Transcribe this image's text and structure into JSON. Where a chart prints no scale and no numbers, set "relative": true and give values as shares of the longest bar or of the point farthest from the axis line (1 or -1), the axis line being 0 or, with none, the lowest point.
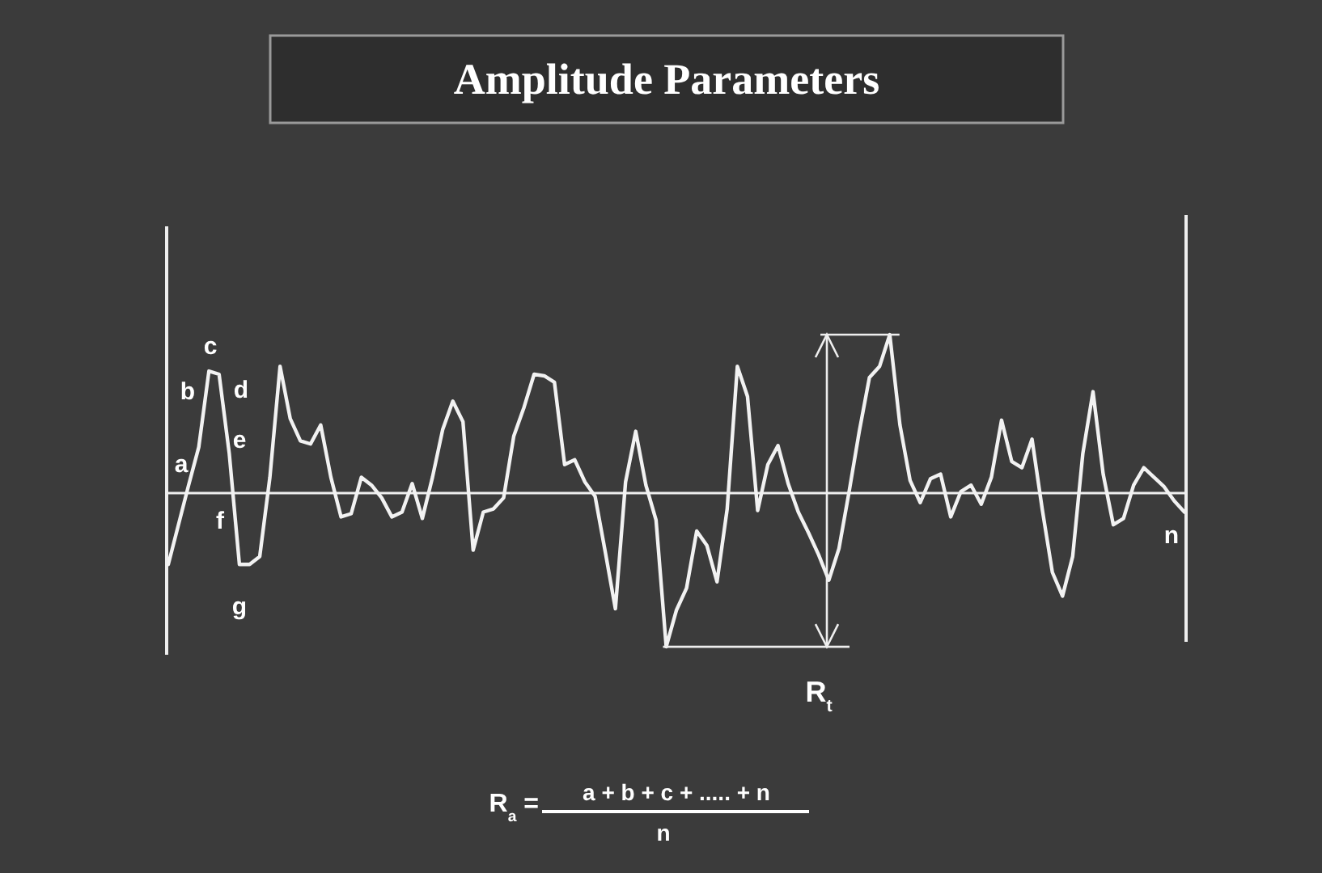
{
  "chart_data": {
    "type": "line",
    "title": "Amplitude Parameters",
    "relative": true,
    "marker": "none",
    "line_style": "solid",
    "color": "#f2f2f2",
    "categories": [
      null,
      null,
      null,
      null,
      null,
      null,
      null,
      null,
      null,
      null,
      null,
      null,
      null,
      null,
      null,
      null,
      null,
      null,
      null,
      null,
      null,
      null,
      null,
      null,
      null,
      null,
      null,
      null,
      null,
      null,
      null,
      null,
      null,
      null,
      null,
      null,
      null,
      null,
      null,
      null,
      null,
      null,
      null,
      null,
      null,
      null,
      null,
      null,
      null,
      null,
      null,
      null,
      null,
      null,
      null,
      null,
      null,
      null,
      null,
      null,
      null,
      null,
      null,
      null,
      null,
      null,
      null,
      null,
      null,
      null,
      null,
      null,
      null,
      null,
      null,
      null,
      null,
      null,
      null,
      null,
      null,
      null,
      null,
      null,
      null,
      null,
      null,
      null,
      null,
      null,
      null,
      null,
      null,
      null,
      null,
      null,
      null,
      null,
      null,
      null,
      null
    ],
    "values": [
      -0.45,
      -0.2,
      0.05,
      0.29,
      0.77,
      0.75,
      0.25,
      -0.45,
      -0.45,
      -0.4,
      0.1,
      0.8,
      0.47,
      0.33,
      0.31,
      0.43,
      0.1,
      -0.15,
      -0.13,
      0.1,
      0.05,
      -0.03,
      -0.15,
      -0.12,
      0.06,
      -0.16,
      0.1,
      0.4,
      0.58,
      0.45,
      -0.36,
      -0.12,
      -0.1,
      -0.03,
      0.36,
      0.54,
      0.75,
      0.74,
      0.7,
      0.18,
      0.21,
      0.07,
      -0.02,
      -0.37,
      -0.73,
      0.07,
      0.39,
      0.05,
      -0.17,
      -0.97,
      -0.74,
      -0.6,
      -0.24,
      -0.33,
      -0.56,
      -0.1,
      0.8,
      0.61,
      -0.11,
      0.18,
      0.3,
      0.06,
      -0.12,
      -0.25,
      -0.39,
      -0.55,
      -0.35,
      0.01,
      0.39,
      0.73,
      0.8,
      1.0,
      0.43,
      0.08,
      -0.06,
      0.09,
      0.12,
      -0.15,
      0.01,
      0.05,
      -0.07,
      0.1,
      0.46,
      0.2,
      0.16,
      0.34,
      -0.1,
      -0.5,
      -0.65,
      -0.4,
      0.25,
      0.64,
      0.12,
      -0.2,
      -0.16,
      0.05,
      0.16,
      0.1,
      0.04,
      -0.05,
      -0.12
    ],
    "annotations": [
      "a",
      "b",
      "c",
      "d",
      "e",
      "f",
      "g",
      "n",
      "R$_{t}$",
      "R$_{a}$ =",
      "a + b + c + ..... + n",
      "n"
    ]
  }
}
